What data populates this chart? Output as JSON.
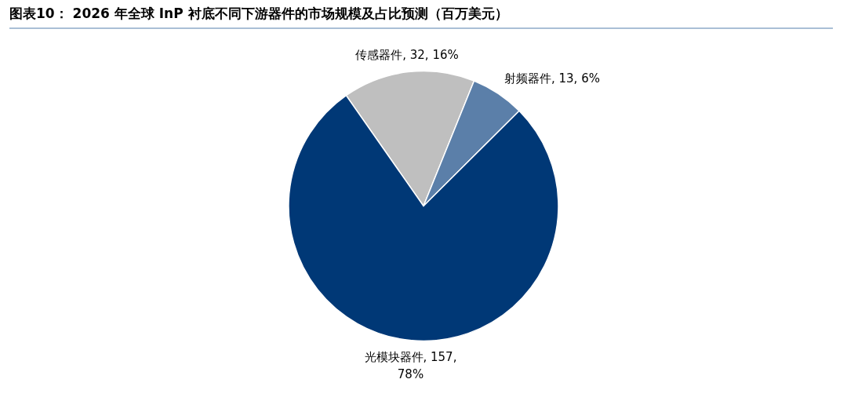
{
  "chart_data": {
    "type": "pie",
    "title": "图表10： 2026 年全球 InP 衬底不同下游器件的市场规模及占比预测（百万美元）",
    "categories": [
      "传感器件",
      "射频器件",
      "光模块器件"
    ],
    "values": [
      32,
      13,
      157
    ],
    "value_labels": [
      "32, 16%",
      "13, 6%",
      "157, 78%"
    ],
    "colors": [
      "#bfbfbf",
      "#5b7fa9",
      "#003876"
    ]
  }
}
